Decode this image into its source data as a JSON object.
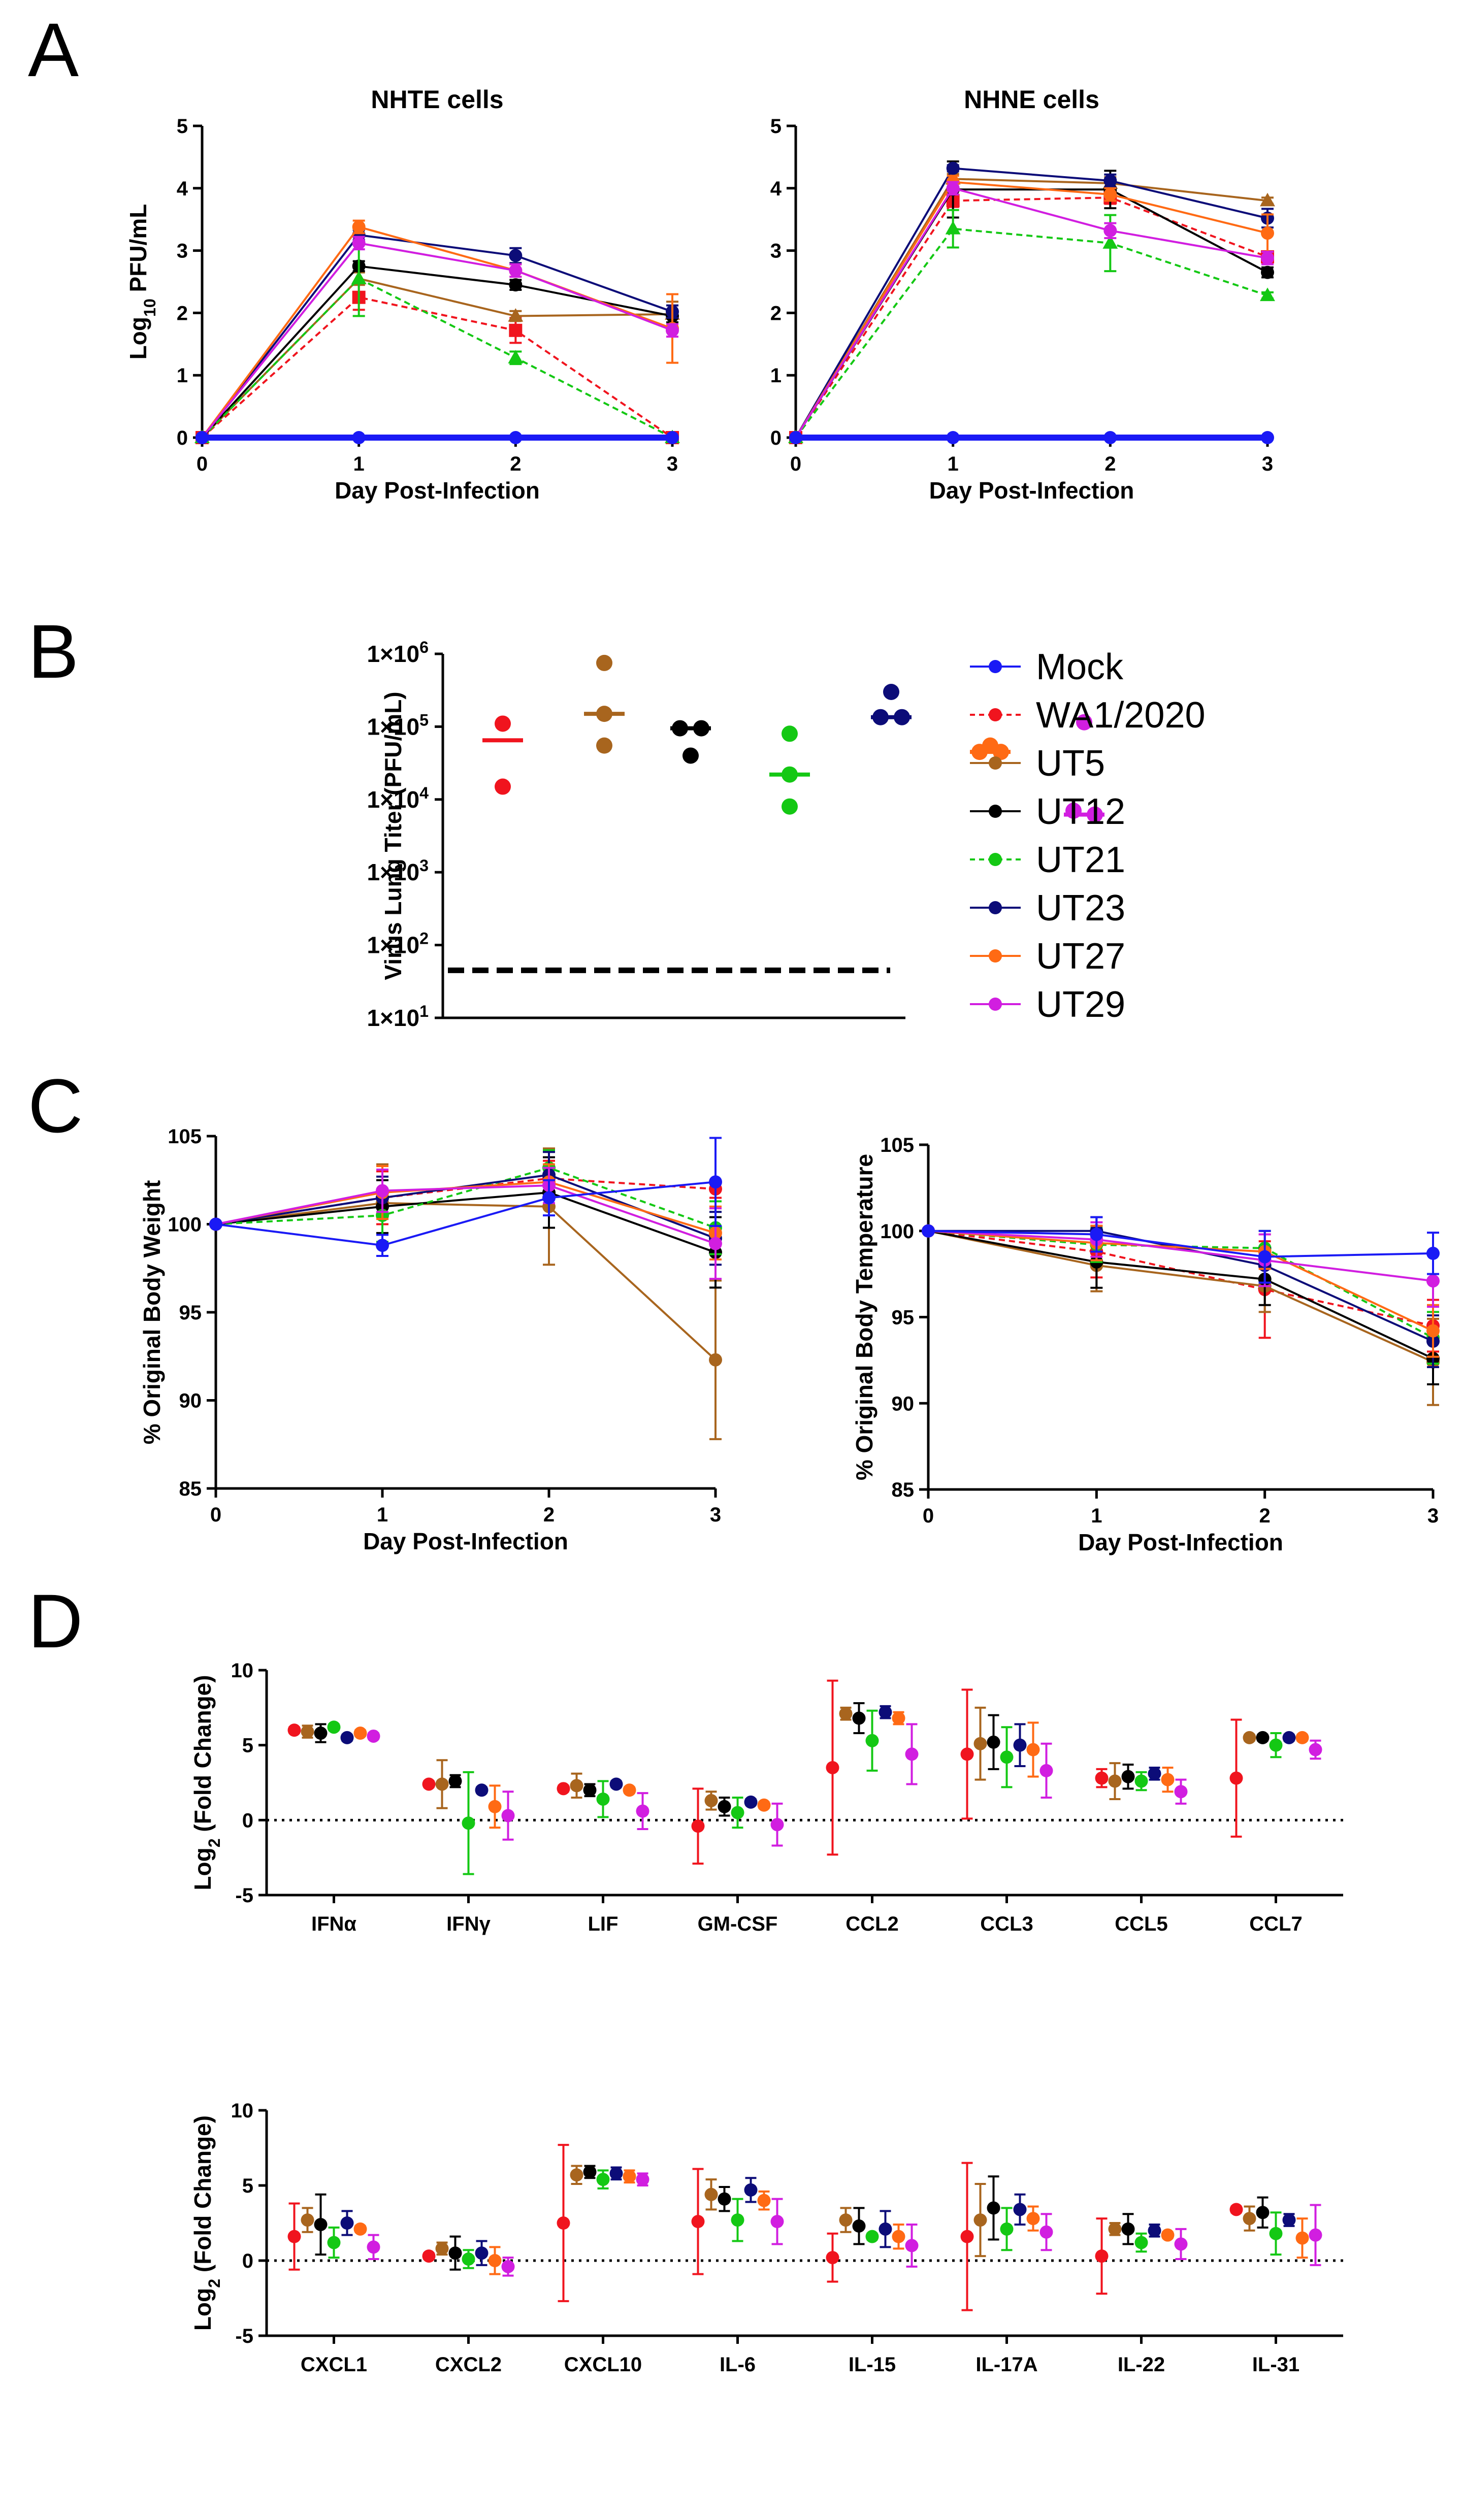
{
  "panels": {
    "A": "A",
    "B": "B",
    "C": "C",
    "D": "D"
  },
  "series": [
    {
      "name": "Mock",
      "color": "#1a1af5",
      "marker": "circle",
      "dashed": false
    },
    {
      "name": "WA1/2020",
      "color": "#f0141e",
      "marker": "square",
      "dashed": true
    },
    {
      "name": "UT5",
      "color": "#a8651e",
      "marker": "triangle",
      "dashed": false
    },
    {
      "name": "UT12",
      "color": "#000000",
      "marker": "circle",
      "dashed": false
    },
    {
      "name": "UT21",
      "color": "#14c814",
      "marker": "triangle",
      "dashed": true
    },
    {
      "name": "UT23",
      "color": "#0c0c78",
      "marker": "circle",
      "dashed": false
    },
    {
      "name": "UT27",
      "color": "#ff6a14",
      "marker": "circle",
      "dashed": false
    },
    {
      "name": "UT29",
      "color": "#d11ee0",
      "marker": "circle",
      "dashed": false
    }
  ],
  "chart_data": [
    {
      "id": "A1",
      "type": "line",
      "title": "NHTE cells",
      "xlabel": "Day Post-Infection",
      "ylabel": "Log10 PFU/mL",
      "ylabel_parts": [
        "Log",
        "10",
        " PFU/mL"
      ],
      "x": [
        0,
        1,
        2,
        3
      ],
      "xlim": [
        0,
        3
      ],
      "ylim": [
        0,
        5
      ],
      "xticks": [
        "0",
        "1",
        "2",
        "3"
      ],
      "yticks": [
        "0",
        "1",
        "2",
        "3",
        "4",
        "5"
      ],
      "series": [
        {
          "name": "Mock",
          "values": [
            0,
            0,
            0,
            0
          ],
          "err": [
            0,
            0,
            0,
            0
          ]
        },
        {
          "name": "WA1/2020",
          "values": [
            0,
            2.25,
            1.72,
            0
          ],
          "err": [
            0,
            0.2,
            0.2,
            0
          ]
        },
        {
          "name": "UT5",
          "values": [
            0,
            2.55,
            1.95,
            1.98
          ],
          "err": [
            0,
            0.1,
            0.08,
            0.2
          ]
        },
        {
          "name": "UT12",
          "values": [
            0,
            2.75,
            2.45,
            1.95
          ],
          "err": [
            0,
            0.08,
            0.08,
            0.1
          ]
        },
        {
          "name": "UT21",
          "values": [
            0,
            2.55,
            1.28,
            0
          ],
          "err": [
            0,
            0.6,
            0.1,
            0
          ]
        },
        {
          "name": "UT23",
          "values": [
            0,
            3.25,
            2.92,
            2.02
          ],
          "err": [
            0,
            0.08,
            0.12,
            0.1
          ]
        },
        {
          "name": "UT27",
          "values": [
            0,
            3.38,
            2.68,
            1.75
          ],
          "err": [
            0,
            0.1,
            0.1,
            0.55
          ]
        },
        {
          "name": "UT29",
          "values": [
            0,
            3.12,
            2.68,
            1.72
          ],
          "err": [
            0,
            0.1,
            0.1,
            0.1
          ]
        }
      ]
    },
    {
      "id": "A2",
      "type": "line",
      "title": "NHNE cells",
      "xlabel": "Day Post-Infection",
      "ylabel": "",
      "x": [
        0,
        1,
        2,
        3
      ],
      "xlim": [
        0,
        3
      ],
      "ylim": [
        0,
        5
      ],
      "xticks": [
        "0",
        "1",
        "2",
        "3"
      ],
      "yticks": [
        "0",
        "1",
        "2",
        "3",
        "4",
        "5"
      ],
      "series": [
        {
          "name": "Mock",
          "values": [
            0,
            0,
            0,
            0
          ],
          "err": [
            0,
            0,
            0,
            0
          ]
        },
        {
          "name": "WA1/2020",
          "values": [
            0,
            3.8,
            3.85,
            2.9
          ],
          "err": [
            0,
            0.1,
            0.1,
            0.08
          ]
        },
        {
          "name": "UT5",
          "values": [
            0,
            4.15,
            4.08,
            3.8
          ],
          "err": [
            0,
            0.08,
            0.1,
            0.05
          ]
        },
        {
          "name": "UT12",
          "values": [
            0,
            3.98,
            3.98,
            2.65
          ],
          "err": [
            0,
            0.45,
            0.3,
            0.08
          ]
        },
        {
          "name": "UT21",
          "values": [
            0,
            3.35,
            3.12,
            2.28
          ],
          "err": [
            0,
            0.3,
            0.45,
            0.05
          ]
        },
        {
          "name": "UT23",
          "values": [
            0,
            4.32,
            4.12,
            3.52
          ],
          "err": [
            0,
            0.05,
            0.1,
            0.15
          ]
        },
        {
          "name": "UT27",
          "values": [
            0,
            4.1,
            3.9,
            3.28
          ],
          "err": [
            0,
            0.1,
            0.1,
            0.3
          ]
        },
        {
          "name": "UT29",
          "values": [
            0,
            4.0,
            3.32,
            2.88
          ],
          "err": [
            0,
            0.1,
            0.12,
            0.1
          ]
        }
      ]
    },
    {
      "id": "B",
      "type": "scatter",
      "ylabel": "Virus Lung Titer (PFU/mL)",
      "yscale": "log",
      "ylim": [
        10,
        1000000
      ],
      "yticks": [
        "1×10^1",
        "1×10^2",
        "1×10^3",
        "1×10^4",
        "1×10^5",
        "1×10^6"
      ],
      "ytick_parts": [
        [
          "1×10",
          "1"
        ],
        [
          "1×10",
          "2"
        ],
        [
          "1×10",
          "3"
        ],
        [
          "1×10",
          "4"
        ],
        [
          "1×10",
          "5"
        ],
        [
          "1×10",
          "6"
        ]
      ],
      "limit_of_detection": 45,
      "groups": [
        {
          "name": "WA1/2020",
          "points": [
            110000,
            15000
          ],
          "mean": 65000
        },
        {
          "name": "UT5",
          "points": [
            750000,
            150000,
            55000
          ],
          "mean": 150000
        },
        {
          "name": "UT12",
          "points": [
            95000,
            95000,
            40000
          ],
          "mean": 95000
        },
        {
          "name": "UT21",
          "points": [
            80000,
            22000,
            8000
          ],
          "mean": 22000
        },
        {
          "name": "UT23",
          "points": [
            300000,
            135000,
            135000
          ],
          "mean": 135000
        },
        {
          "name": "UT27",
          "points": [
            55000,
            45000,
            45000
          ],
          "mean": 45000
        },
        {
          "name": "UT29",
          "points": [
            115000,
            7000,
            6200
          ],
          "mean": 6200
        }
      ],
      "legend": [
        "Mock",
        "WA1/2020",
        "UT5",
        "UT12",
        "UT21",
        "UT23",
        "UT27",
        "UT29"
      ]
    },
    {
      "id": "C1",
      "type": "line",
      "xlabel": "Day Post-Infection",
      "ylabel": "% Original Body Weight",
      "x": [
        0,
        1,
        2,
        3
      ],
      "xlim": [
        0,
        3
      ],
      "ylim": [
        85,
        105
      ],
      "xticks": [
        "0",
        "1",
        "2",
        "3"
      ],
      "yticks": [
        "85",
        "90",
        "95",
        "100",
        "105"
      ],
      "series": [
        {
          "name": "Mock",
          "values": [
            100,
            98.8,
            101.5,
            102.4
          ],
          "err": [
            0,
            0.6,
            1,
            2.5
          ]
        },
        {
          "name": "WA1/2020",
          "values": [
            100,
            101.5,
            102.6,
            102.0
          ],
          "err": [
            0,
            1.5,
            1,
            0.5
          ]
        },
        {
          "name": "UT5",
          "values": [
            100,
            101.2,
            101.0,
            92.3
          ],
          "err": [
            0,
            2.2,
            3.3,
            4.5
          ]
        },
        {
          "name": "UT12",
          "values": [
            100,
            101.0,
            101.8,
            98.4
          ],
          "err": [
            0,
            1.5,
            2,
            2
          ]
        },
        {
          "name": "UT21",
          "values": [
            100,
            100.5,
            103.2,
            99.8
          ],
          "err": [
            0,
            1.5,
            1,
            1.5
          ]
        },
        {
          "name": "UT23",
          "values": [
            100,
            101.5,
            102.8,
            99.2
          ],
          "err": [
            0,
            1.2,
            1.3,
            1.5
          ]
        },
        {
          "name": "UT27",
          "values": [
            100,
            101.8,
            102.4,
            99.5
          ],
          "err": [
            0,
            1.5,
            1,
            1.5
          ]
        },
        {
          "name": "UT29",
          "values": [
            100,
            101.9,
            102.2,
            98.9
          ],
          "err": [
            0,
            1.2,
            1,
            2
          ]
        }
      ]
    },
    {
      "id": "C2",
      "type": "line",
      "xlabel": "Day Post-Infection",
      "ylabel": "% Original Body Temperature",
      "x": [
        0,
        1,
        2,
        3
      ],
      "xlim": [
        0,
        3
      ],
      "ylim": [
        85,
        105
      ],
      "xticks": [
        "0",
        "1",
        "2",
        "3"
      ],
      "yticks": [
        "85",
        "90",
        "95",
        "100",
        "105"
      ],
      "series": [
        {
          "name": "Mock",
          "values": [
            100,
            99.8,
            98.5,
            98.7
          ],
          "err": [
            0,
            1,
            1.5,
            1.2
          ]
        },
        {
          "name": "WA1/2020",
          "values": [
            100,
            98.8,
            96.6,
            94.5
          ],
          "err": [
            0,
            1.5,
            2.8,
            1.5
          ]
        },
        {
          "name": "UT5",
          "values": [
            100,
            98.0,
            96.8,
            92.4
          ],
          "err": [
            0,
            1.5,
            1.5,
            2.5
          ]
        },
        {
          "name": "UT12",
          "values": [
            100,
            98.2,
            97.2,
            92.6
          ],
          "err": [
            0,
            1.5,
            1.5,
            1.5
          ]
        },
        {
          "name": "UT21",
          "values": [
            100,
            99.2,
            99.0,
            93.8
          ],
          "err": [
            0,
            1,
            1,
            1.5
          ]
        },
        {
          "name": "UT23",
          "values": [
            100,
            100.0,
            98.0,
            93.6
          ],
          "err": [
            0,
            0.8,
            1,
            1.5
          ]
        },
        {
          "name": "UT27",
          "values": [
            100,
            99.3,
            98.8,
            94.2
          ],
          "err": [
            0,
            1,
            1,
            1.5
          ]
        },
        {
          "name": "UT29",
          "values": [
            100,
            99.5,
            98.3,
            97.1
          ],
          "err": [
            0,
            1,
            1.5,
            1.5
          ]
        }
      ]
    },
    {
      "id": "D1",
      "type": "scatter",
      "ylabel": "Log2 (Fold Change)",
      "ylabel_parts": [
        "Log",
        "2",
        " (Fold Change)"
      ],
      "ylim": [
        -5,
        10
      ],
      "yticks": [
        "-5",
        "0",
        "5",
        "10"
      ],
      "reference_line": 0,
      "group_order": [
        "WA1/2020",
        "UT5",
        "UT12",
        "UT21",
        "UT23",
        "UT27",
        "UT29"
      ],
      "categories": [
        {
          "name": "IFNα",
          "values": [
            6.0,
            5.9,
            5.8,
            6.2,
            5.5,
            5.8,
            5.6
          ],
          "err": [
            0.2,
            0.4,
            0.6,
            0.2,
            0.2,
            0.2,
            0.2
          ]
        },
        {
          "name": "IFNγ",
          "values": [
            2.4,
            2.4,
            2.6,
            -0.2,
            2.0,
            0.9,
            0.3
          ],
          "err": [
            0.2,
            1.6,
            0.4,
            3.4,
            0.2,
            1.4,
            1.6
          ]
        },
        {
          "name": "LIF",
          "values": [
            2.1,
            2.3,
            2.0,
            1.4,
            2.4,
            2.0,
            0.6
          ],
          "err": [
            0.2,
            0.8,
            0.4,
            1.2,
            0.2,
            0.2,
            1.2
          ]
        },
        {
          "name": "GM-CSF",
          "values": [
            -0.4,
            1.3,
            0.9,
            0.5,
            1.2,
            1.0,
            -0.3
          ],
          "err": [
            2.5,
            0.6,
            0.6,
            1.0,
            0.2,
            0.2,
            1.4
          ]
        },
        {
          "name": "CCL2",
          "values": [
            3.5,
            7.1,
            6.8,
            5.3,
            7.2,
            6.8,
            4.4
          ],
          "err": [
            5.8,
            0.4,
            1.0,
            2.0,
            0.4,
            0.4,
            2.0
          ]
        },
        {
          "name": "CCL3",
          "values": [
            4.4,
            5.1,
            5.2,
            4.2,
            5.0,
            4.7,
            3.3
          ],
          "err": [
            4.3,
            2.4,
            1.8,
            2.0,
            1.4,
            1.8,
            1.8
          ]
        },
        {
          "name": "CCL5",
          "values": [
            2.8,
            2.6,
            2.9,
            2.6,
            3.1,
            2.7,
            1.9
          ],
          "err": [
            0.6,
            1.2,
            0.8,
            0.6,
            0.4,
            0.8,
            0.8
          ]
        },
        {
          "name": "CCL7",
          "values": [
            2.8,
            5.5,
            5.5,
            5.0,
            5.5,
            5.5,
            4.7
          ],
          "err": [
            3.9,
            0.2,
            0.2,
            0.8,
            0.2,
            0.2,
            0.6
          ]
        }
      ]
    },
    {
      "id": "D2",
      "type": "scatter",
      "ylabel": "Log2 (Fold Change)",
      "ylabel_parts": [
        "Log",
        "2",
        " (Fold Change)"
      ],
      "ylim": [
        -5,
        10
      ],
      "yticks": [
        "-5",
        "0",
        "5",
        "10"
      ],
      "reference_line": 0,
      "group_order": [
        "WA1/2020",
        "UT5",
        "UT12",
        "UT21",
        "UT23",
        "UT27",
        "UT29"
      ],
      "categories": [
        {
          "name": "CXCL1",
          "values": [
            1.6,
            2.7,
            2.4,
            1.2,
            2.5,
            2.1,
            0.9
          ],
          "err": [
            2.2,
            0.8,
            2.0,
            1.0,
            0.8,
            0.2,
            0.8
          ]
        },
        {
          "name": "CXCL2",
          "values": [
            0.3,
            0.8,
            0.5,
            0.1,
            0.5,
            0.0,
            -0.4
          ],
          "err": [
            0.2,
            0.4,
            1.1,
            0.6,
            0.8,
            0.9,
            0.6
          ]
        },
        {
          "name": "CXCL10",
          "values": [
            2.5,
            5.7,
            5.9,
            5.4,
            5.8,
            5.6,
            5.4
          ],
          "err": [
            5.2,
            0.6,
            0.4,
            0.6,
            0.4,
            0.4,
            0.4
          ]
        },
        {
          "name": "IL-6",
          "values": [
            2.6,
            4.4,
            4.1,
            2.7,
            4.7,
            4.0,
            2.6
          ],
          "err": [
            3.5,
            1.0,
            0.8,
            1.4,
            0.8,
            0.6,
            1.5
          ]
        },
        {
          "name": "IL-15",
          "values": [
            0.2,
            2.7,
            2.3,
            1.6,
            2.1,
            1.6,
            1.0
          ],
          "err": [
            1.6,
            0.8,
            1.2,
            0.2,
            1.2,
            0.8,
            1.4
          ]
        },
        {
          "name": "IL-17A",
          "values": [
            1.6,
            2.7,
            3.5,
            2.1,
            3.4,
            2.8,
            1.9
          ],
          "err": [
            4.9,
            2.4,
            2.1,
            1.4,
            1.0,
            0.8,
            1.2
          ]
        },
        {
          "name": "IL-22",
          "values": [
            0.3,
            2.1,
            2.1,
            1.2,
            2.0,
            1.7,
            1.1
          ],
          "err": [
            2.5,
            0.4,
            1.0,
            0.6,
            0.4,
            0.2,
            1.0
          ]
        },
        {
          "name": "IL-31",
          "values": [
            3.4,
            2.8,
            3.2,
            1.8,
            2.7,
            1.5,
            1.7
          ],
          "err": [
            0.2,
            0.8,
            1.0,
            1.4,
            0.4,
            1.3,
            2.0
          ]
        }
      ]
    }
  ]
}
